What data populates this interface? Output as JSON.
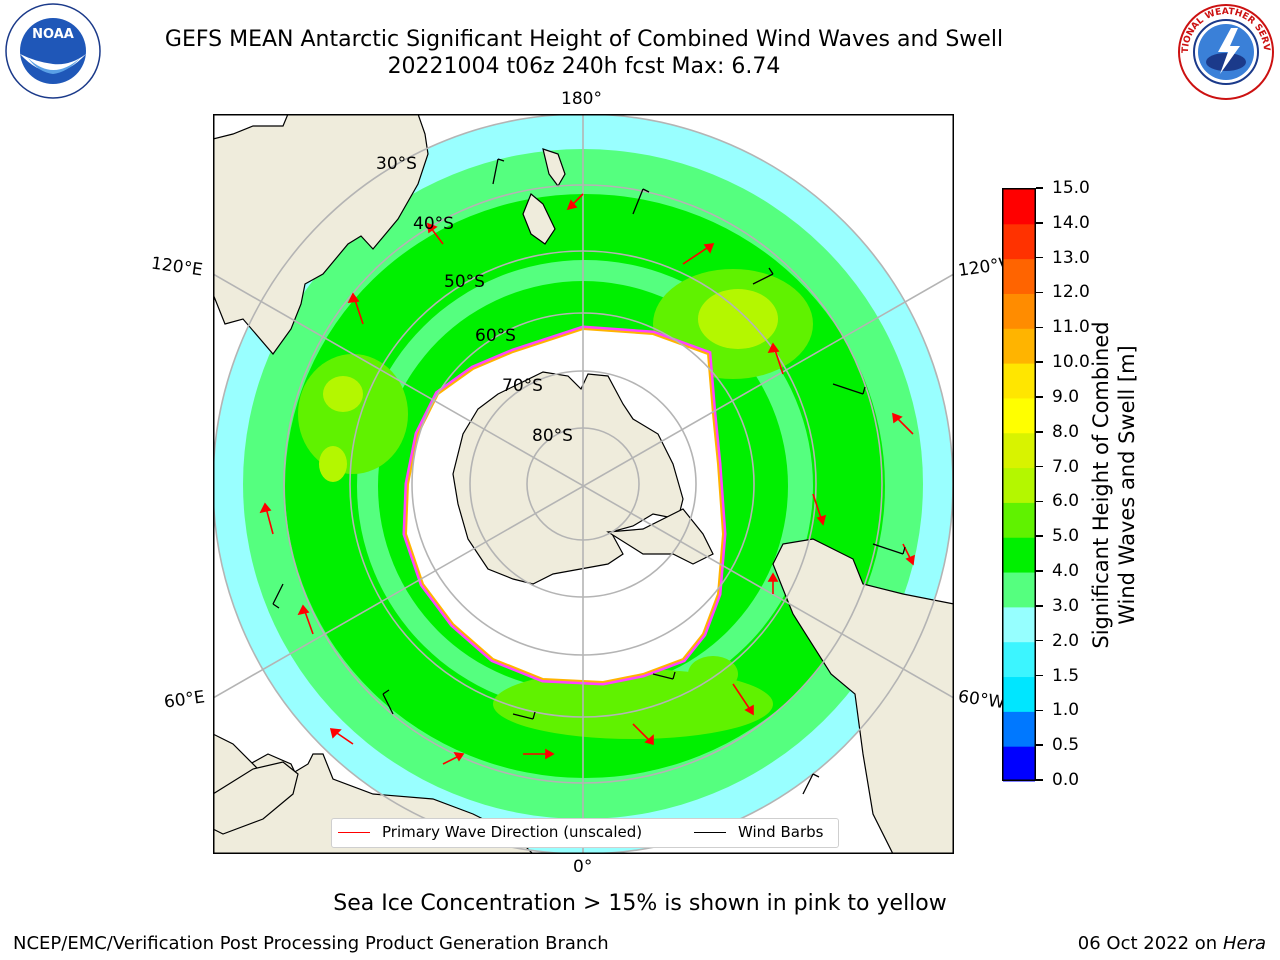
{
  "header": {
    "title_line1": "GEFS MEAN Antarctic Significant Height of Combined Wind Waves and Swell",
    "title_line2": "20221004 t06z 240h fcst   Max: 6.74"
  },
  "logos": {
    "left": "NOAA",
    "right": "NATIONAL WEATHER SERVICE"
  },
  "map": {
    "projection": "south polar stereographic",
    "longitude_labels": {
      "top": "180°",
      "left_upper": "120°E",
      "right_upper": "120°W",
      "left_lower": "60°E",
      "right_lower": "60°W",
      "bottom": "0°"
    },
    "latitude_labels": [
      "30°S",
      "40°S",
      "50°S",
      "60°S",
      "70°S",
      "80°S"
    ],
    "colors": {
      "land": "#efecdc",
      "ice_free_sea": "#ffffff",
      "grid": "#b4b4b4",
      "sea_ice_edge": "#ff44ff",
      "wave_arrow": "#ff0000",
      "wind_barb": "#000000"
    }
  },
  "legend": {
    "primary_wave": {
      "label": "Primary Wave Direction (unscaled)",
      "color": "#ff0000"
    },
    "wind_barbs": {
      "label": "Wind Barbs",
      "color": "#000000"
    }
  },
  "colorbar": {
    "label": "Significant Height of Combined Wind Waves and Swell [m]",
    "ticks": [
      "0.0",
      "0.5",
      "1.0",
      "1.5",
      "2.0",
      "3.0",
      "4.0",
      "5.0",
      "6.0",
      "7.0",
      "8.0",
      "9.0",
      "10.0",
      "11.0",
      "12.0",
      "13.0",
      "14.0",
      "15.0"
    ],
    "colors": [
      "#0000ff",
      "#0078ff",
      "#00e6ff",
      "#3cf5ff",
      "#96ffff",
      "#55ff7f",
      "#00f000",
      "#60f200",
      "#b4f700",
      "#d8f300",
      "#ffff00",
      "#ffe600",
      "#ffb400",
      "#ff8c00",
      "#ff6400",
      "#ff3200",
      "#ff0000"
    ]
  },
  "notes": {
    "sea_ice": "Sea Ice Concentration > 15% is shown in pink to yellow"
  },
  "footer": {
    "left": "NCEP/EMC/Verification Post Processing Product Generation Branch",
    "right_date": "06 Oct 2022 on ",
    "right_machine": "Hera"
  }
}
